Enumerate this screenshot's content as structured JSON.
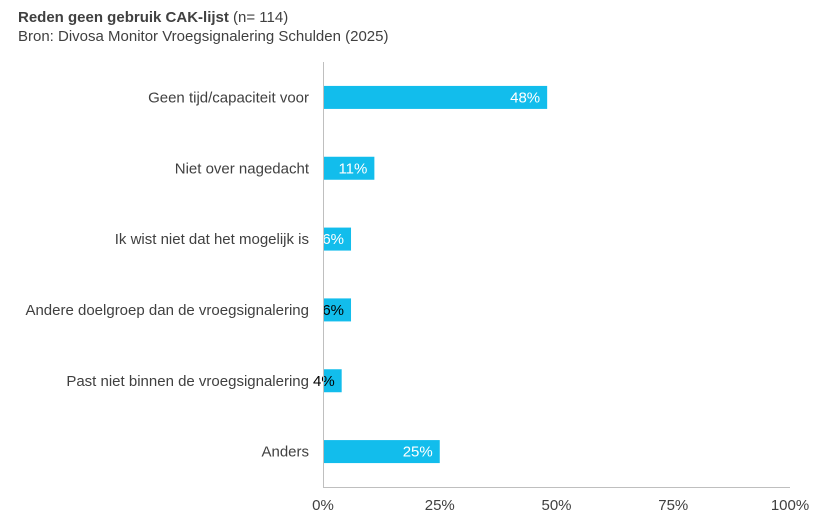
{
  "chart_data": {
    "type": "bar",
    "orientation": "horizontal",
    "title": "Reden geen gebruik CAK-lijst",
    "title_note": "(n= 114)",
    "subtitle": "Bron: Divosa Monitor Vroegsignalering Schulden (2025)",
    "categories": [
      "Geen tijd/capaciteit voor",
      "Niet over nagedacht",
      "Ik wist niet dat het mogelijk is",
      "Andere doelgroep dan de vroegsignalering",
      "Past niet binnen de vroegsignalering",
      "Anders"
    ],
    "values": [
      48,
      11,
      6,
      6,
      4,
      25
    ],
    "value_labels": [
      "48%",
      "11%",
      "6%",
      "6%",
      "4%",
      "25%"
    ],
    "value_label_colors": [
      "#ffffff",
      "#ffffff",
      "#ffffff",
      "#000000",
      "#000000",
      "#ffffff"
    ],
    "xlim": [
      0,
      100
    ],
    "x_ticks": [
      "0%",
      "25%",
      "50%",
      "75%",
      "100%"
    ],
    "x_tick_values": [
      0,
      25,
      50,
      75,
      100
    ],
    "bar_color": "#12bdec",
    "axis_color": "#bfbfbf",
    "grid": false,
    "legend": "none"
  }
}
